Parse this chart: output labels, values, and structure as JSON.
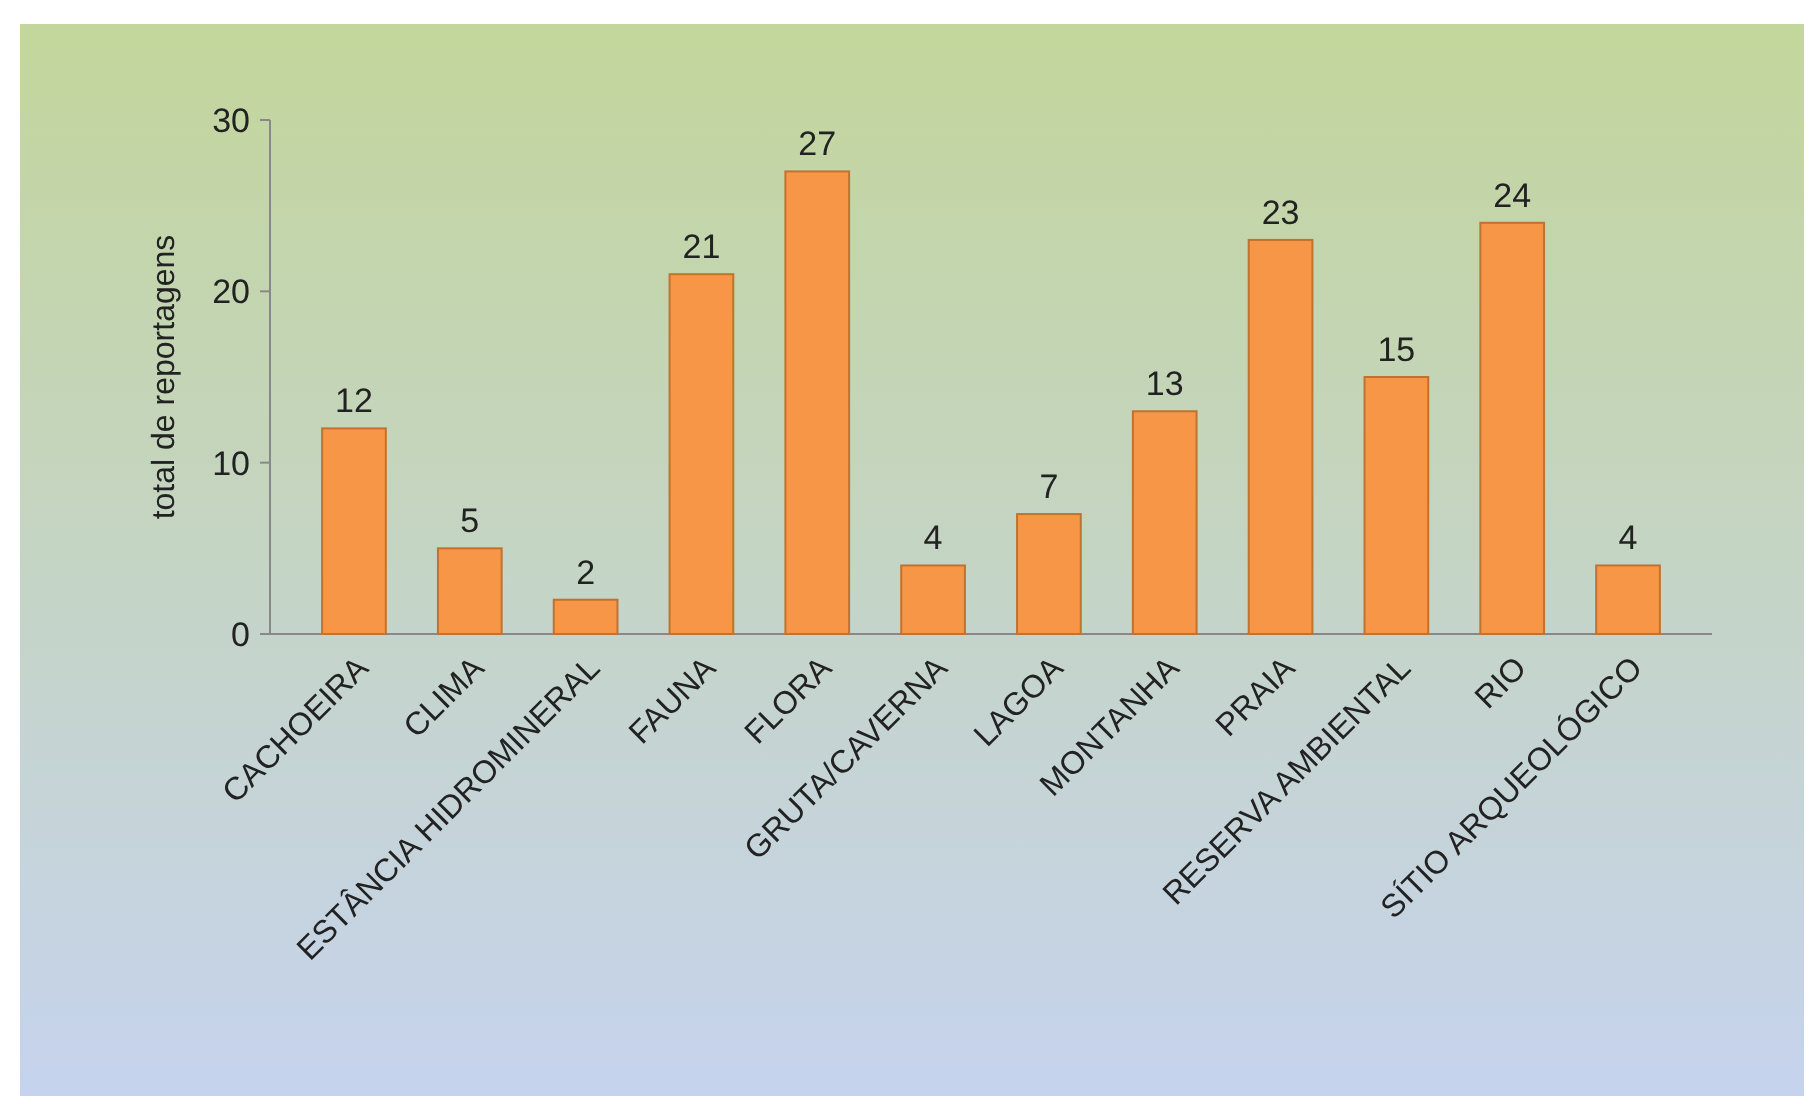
{
  "chart_data": {
    "type": "bar",
    "ylabel": "total de reportagens",
    "categories": [
      "CACHOEIRA",
      "CLIMA",
      "ESTÂNCIA HIDROMINERAL",
      "FAUNA",
      "FLORA",
      "GRUTA/CAVERNA",
      "LAGOA",
      "MONTANHA",
      "PRAIA",
      "RESERVA AMBIENTAL",
      "RIO",
      "SÍTIO ARQUEOLÓGICO"
    ],
    "values": [
      12,
      5,
      2,
      21,
      27,
      4,
      7,
      13,
      23,
      15,
      24,
      4
    ],
    "color": "#f79646",
    "ylim": [
      0,
      30
    ],
    "yticks": [
      0,
      10,
      20,
      30
    ],
    "data_labels": true
  }
}
